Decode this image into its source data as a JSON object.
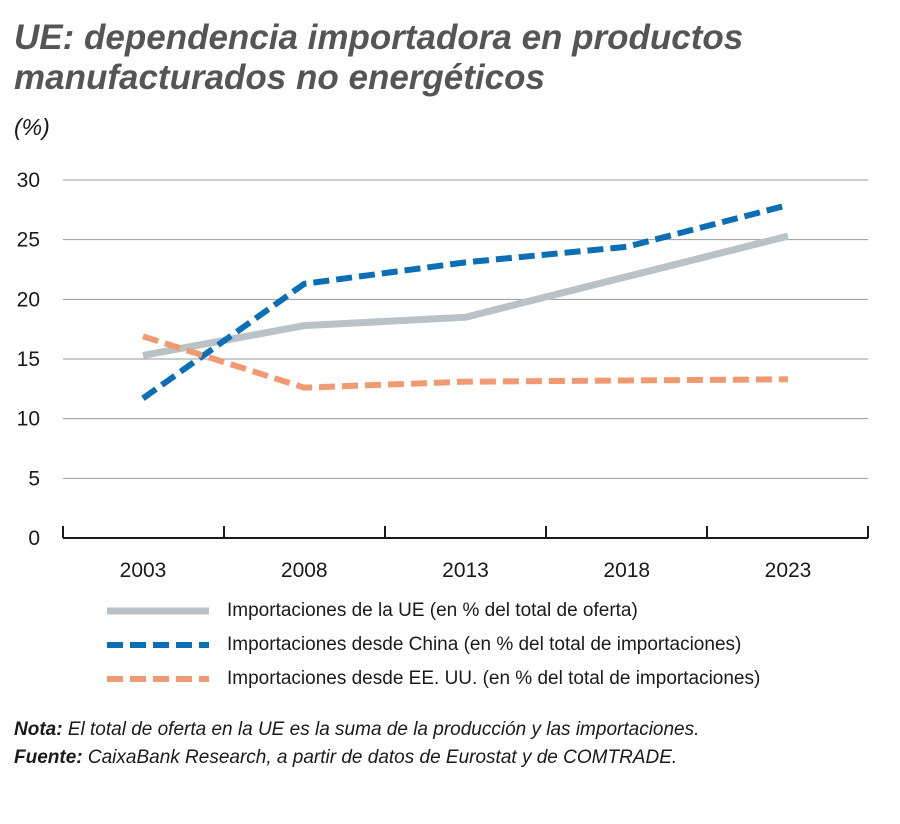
{
  "title_line1": "UE: dependencia importadora en productos",
  "title_line2": "manufacturados no energéticos",
  "unit": "(%)",
  "chart_data": {
    "type": "line",
    "title": "UE: dependencia importadora en productos manufacturados no energéticos",
    "ylabel": "(%)",
    "xlabel": "",
    "x": [
      2003,
      2008,
      2013,
      2018,
      2023
    ],
    "x_tick_labels": [
      "2003",
      "2008",
      "2013",
      "2018",
      "2023"
    ],
    "y_ticks": [
      0,
      5,
      10,
      15,
      20,
      25,
      30
    ],
    "y_tick_labels": [
      "0",
      "5",
      "10",
      "15",
      "20",
      "25",
      "30"
    ],
    "ylim": [
      0,
      30
    ],
    "grid": true,
    "series": [
      {
        "name": "Importaciones de la UE (en % del total de oferta)",
        "color": "#b9c2c7",
        "style": "solid",
        "values": [
          15.3,
          17.8,
          18.5,
          21.9,
          25.3
        ]
      },
      {
        "name": "Importaciones desde China (en % del total de importaciones)",
        "color": "#0a6fb5",
        "style": "dashed",
        "values": [
          11.7,
          21.3,
          23.1,
          24.4,
          27.9
        ]
      },
      {
        "name": "Importaciones desde EE. UU. (en % del total de importaciones)",
        "color": "#f19a72",
        "style": "dashed",
        "values": [
          16.9,
          12.6,
          13.1,
          13.2,
          13.3
        ]
      }
    ]
  },
  "notes": {
    "nota_label": "Nota:",
    "nota_text": " El total de oferta en la UE es la suma de la producción y las importaciones.",
    "fuente_label": "Fuente:",
    "fuente_text": " CaixaBank Research, a partir de datos de Eurostat y de COMTRADE."
  }
}
